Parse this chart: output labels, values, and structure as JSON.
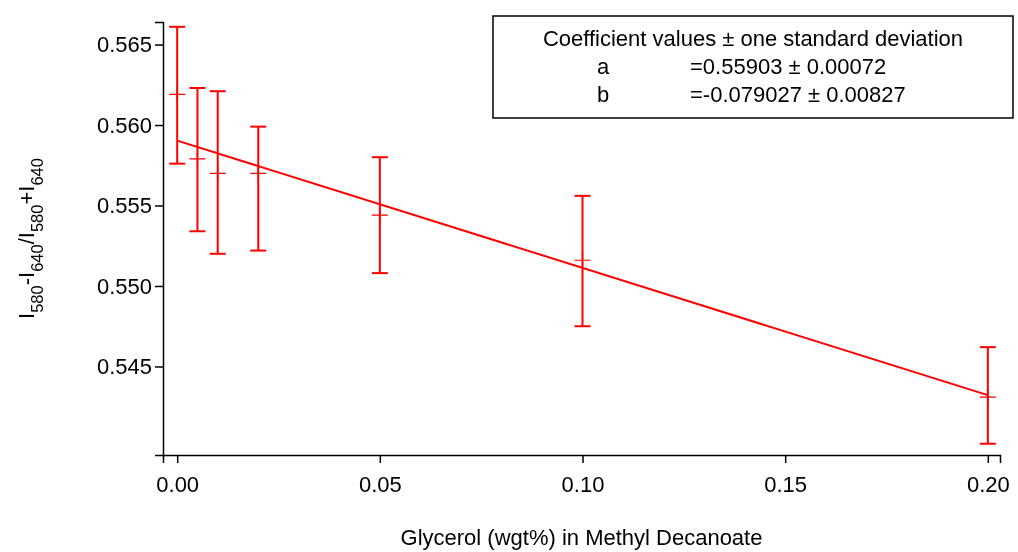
{
  "chart_data": {
    "type": "scatter",
    "xlabel": "Glycerol (wgt%) in Methyl Decanoate",
    "ylabel": "I$_{580}$-I$_{640}$/I$_{580}$+I$_{640}$",
    "xlim": [
      -0.0035,
      0.203
    ],
    "ylim": [
      0.5395,
      0.5664
    ],
    "xticks": [
      {
        "value": 0,
        "label": "0.00"
      },
      {
        "value": 0.05,
        "label": "0.05"
      },
      {
        "value": 0.1,
        "label": "0.10"
      },
      {
        "value": 0.15,
        "label": "0.15"
      },
      {
        "value": 0.2,
        "label": "0.20"
      }
    ],
    "yticks": [
      0.545,
      {
        "value": 0.55,
        "label": "0.550"
      },
      0.555,
      {
        "value": 0.56,
        "label": "0.560"
      },
      0.565
    ],
    "grid": false,
    "annotations": [
      "Coefficient values ± one standard deviation",
      "a",
      "=0.55903 ± 0.00072",
      "b",
      "=-0.079027 ± 0.00827"
    ],
    "series": [
      {
        "marker": "cross",
        "color": "#ff0000",
        "x": [
          0,
          0.005,
          0.01,
          0.02,
          0.05,
          0.1,
          0.2
        ],
        "values": [
          0.5619,
          0.5579,
          0.557,
          0.557,
          0.5544,
          0.5516,
          0.5431
        ],
        "errors": [
          [
            0.5576,
            0.5661
          ],
          [
            0.5534,
            0.5623
          ],
          [
            0.552,
            0.5621
          ],
          [
            0.5522,
            0.5599
          ],
          [
            0.5508,
            0.558
          ],
          [
            0.5475,
            0.5556
          ],
          [
            0.5402,
            0.5462
          ]
        ]
      },
      {
        "type": "line",
        "color": "#ff0000",
        "line_style": "solid",
        "x": [
          0,
          0.2
        ],
        "values": [
          0.55903,
          0.54322
        ]
      }
    ]
  }
}
